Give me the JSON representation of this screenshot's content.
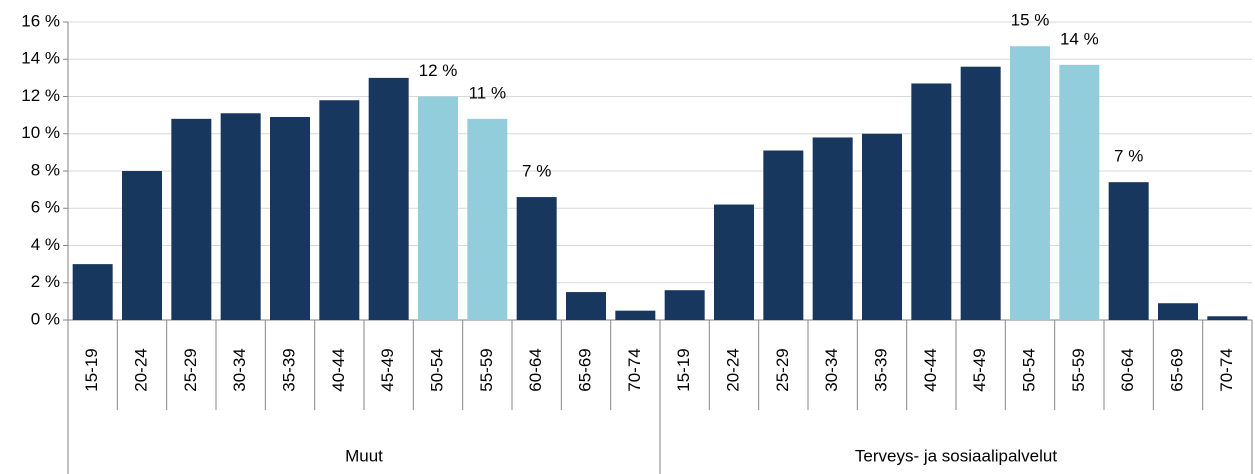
{
  "chart_data": {
    "type": "bar",
    "ylim": [
      0,
      16
    ],
    "yticks": [
      {
        "value": 0,
        "label": "0 %"
      },
      {
        "value": 2,
        "label": "2 %"
      },
      {
        "value": 4,
        "label": "4 %"
      },
      {
        "value": 6,
        "label": "6 %"
      },
      {
        "value": 8,
        "label": "8 %"
      },
      {
        "value": 10,
        "label": "10 %"
      },
      {
        "value": 12,
        "label": "12 %"
      },
      {
        "value": 14,
        "label": "14 %"
      },
      {
        "value": 16,
        "label": "16 %"
      }
    ],
    "grid": true,
    "groups": [
      {
        "name": "Muut",
        "categories": [
          "15-19",
          "20-24",
          "25-29",
          "30-34",
          "35-39",
          "40-44",
          "45-49",
          "50-54",
          "55-59",
          "60-64",
          "65-69",
          "70-74"
        ],
        "values": [
          3.0,
          8.0,
          10.8,
          11.1,
          10.9,
          11.8,
          13.0,
          12.0,
          10.8,
          6.6,
          1.5,
          0.5
        ],
        "value_labels": [
          null,
          null,
          null,
          null,
          null,
          null,
          null,
          "12 %",
          "11 %",
          "7 %",
          null,
          null
        ],
        "colors": [
          "#17375e",
          "#17375e",
          "#17375e",
          "#17375e",
          "#17375e",
          "#17375e",
          "#17375e",
          "#92cddc",
          "#92cddc",
          "#17375e",
          "#17375e",
          "#17375e"
        ]
      },
      {
        "name": "Terveys- ja sosiaalipalvelut",
        "categories": [
          "15-19",
          "20-24",
          "25-29",
          "30-34",
          "35-39",
          "40-44",
          "45-49",
          "50-54",
          "55-59",
          "60-64",
          "65-69",
          "70-74"
        ],
        "values": [
          1.6,
          6.2,
          9.1,
          9.8,
          10.0,
          12.7,
          13.6,
          14.7,
          13.7,
          7.4,
          0.9,
          0.2
        ],
        "value_labels": [
          null,
          null,
          null,
          null,
          null,
          null,
          null,
          "15 %",
          "14 %",
          "7 %",
          null,
          null
        ],
        "colors": [
          "#17375e",
          "#17375e",
          "#17375e",
          "#17375e",
          "#17375e",
          "#17375e",
          "#17375e",
          "#92cddc",
          "#92cddc",
          "#17375e",
          "#17375e",
          "#17375e"
        ]
      }
    ]
  }
}
